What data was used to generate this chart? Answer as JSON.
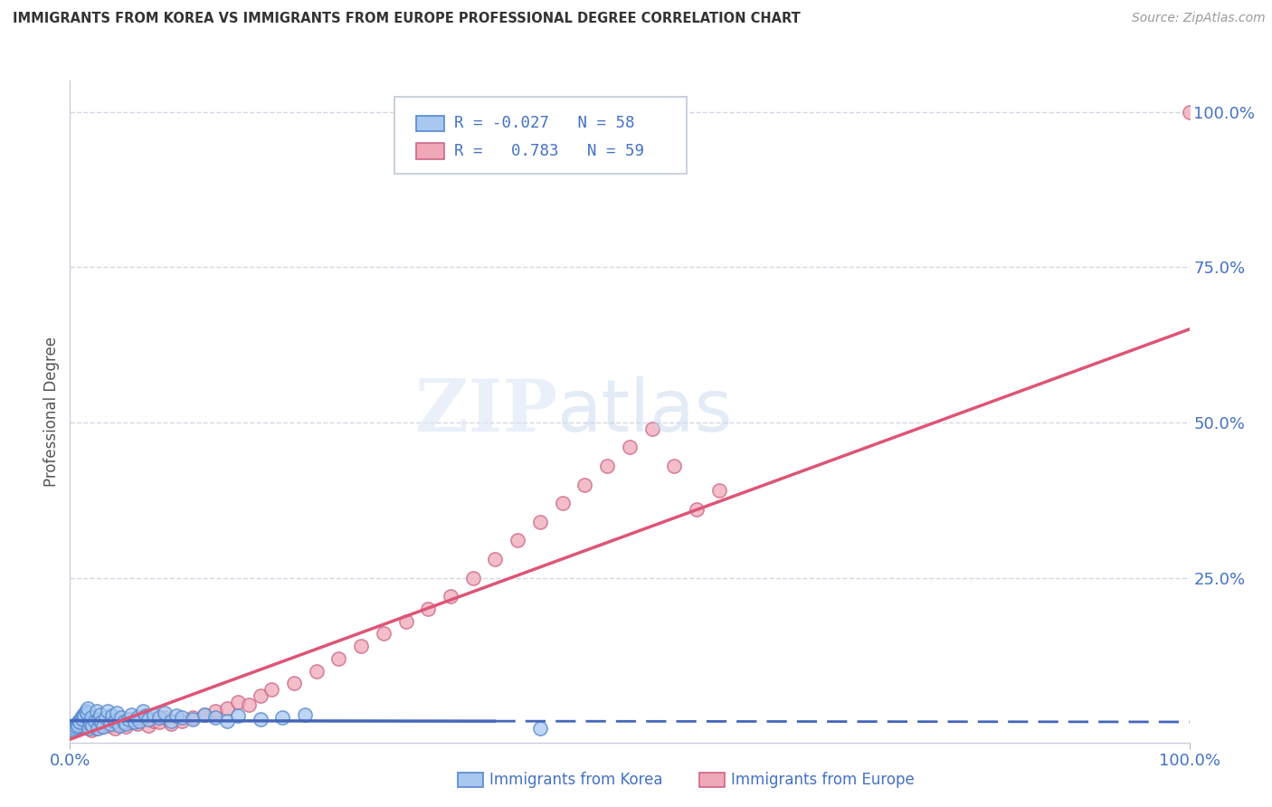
{
  "title": "IMMIGRANTS FROM KOREA VS IMMIGRANTS FROM EUROPE PROFESSIONAL DEGREE CORRELATION CHART",
  "source": "Source: ZipAtlas.com",
  "ylabel": "Professional Degree",
  "color_korea": "#a8c8f0",
  "color_korea_edge": "#5588cc",
  "color_europe": "#f0a8b8",
  "color_europe_edge": "#cc6688",
  "color_korea_line": "#4466bb",
  "color_europe_line": "#dd5577",
  "color_text_blue": "#4472c4",
  "background_color": "#ffffff",
  "grid_color": "#ccccdd",
  "xlim": [
    0.0,
    1.0
  ],
  "ylim": [
    -0.015,
    1.05
  ],
  "korea_scatter_x": [
    0.003,
    0.004,
    0.005,
    0.006,
    0.007,
    0.008,
    0.009,
    0.01,
    0.011,
    0.012,
    0.013,
    0.014,
    0.015,
    0.016,
    0.017,
    0.018,
    0.019,
    0.02,
    0.022,
    0.024,
    0.025,
    0.026,
    0.027,
    0.028,
    0.03,
    0.032,
    0.034,
    0.036,
    0.038,
    0.04,
    0.042,
    0.044,
    0.046,
    0.048,
    0.05,
    0.052,
    0.055,
    0.058,
    0.06,
    0.062,
    0.065,
    0.068,
    0.07,
    0.075,
    0.08,
    0.085,
    0.09,
    0.095,
    0.1,
    0.11,
    0.12,
    0.13,
    0.14,
    0.15,
    0.17,
    0.19,
    0.21,
    0.42
  ],
  "korea_scatter_y": [
    0.005,
    0.008,
    0.01,
    0.015,
    0.012,
    0.02,
    0.018,
    0.025,
    0.022,
    0.03,
    0.028,
    0.035,
    0.032,
    0.04,
    0.008,
    0.015,
    0.025,
    0.012,
    0.02,
    0.035,
    0.008,
    0.022,
    0.03,
    0.018,
    0.01,
    0.025,
    0.035,
    0.015,
    0.028,
    0.02,
    0.032,
    0.012,
    0.025,
    0.018,
    0.015,
    0.022,
    0.03,
    0.018,
    0.025,
    0.02,
    0.035,
    0.028,
    0.022,
    0.03,
    0.025,
    0.032,
    0.02,
    0.028,
    0.025,
    0.022,
    0.03,
    0.025,
    0.02,
    0.028,
    0.022,
    0.025,
    0.03,
    0.008
  ],
  "europe_scatter_x": [
    0.003,
    0.005,
    0.007,
    0.009,
    0.011,
    0.013,
    0.015,
    0.017,
    0.019,
    0.021,
    0.023,
    0.025,
    0.027,
    0.03,
    0.032,
    0.035,
    0.038,
    0.04,
    0.043,
    0.046,
    0.05,
    0.055,
    0.06,
    0.065,
    0.07,
    0.075,
    0.08,
    0.085,
    0.09,
    0.1,
    0.11,
    0.12,
    0.13,
    0.14,
    0.15,
    0.16,
    0.17,
    0.18,
    0.2,
    0.22,
    0.24,
    0.26,
    0.28,
    0.3,
    0.32,
    0.34,
    0.36,
    0.38,
    0.4,
    0.42,
    0.44,
    0.46,
    0.48,
    0.5,
    0.52,
    0.54,
    0.56,
    0.58,
    1.0
  ],
  "europe_scatter_y": [
    0.005,
    0.008,
    0.01,
    0.012,
    0.015,
    0.018,
    0.02,
    0.025,
    0.005,
    0.012,
    0.008,
    0.015,
    0.02,
    0.01,
    0.018,
    0.012,
    0.025,
    0.008,
    0.015,
    0.02,
    0.01,
    0.018,
    0.015,
    0.025,
    0.012,
    0.02,
    0.018,
    0.025,
    0.015,
    0.02,
    0.025,
    0.03,
    0.035,
    0.04,
    0.05,
    0.045,
    0.06,
    0.07,
    0.08,
    0.1,
    0.12,
    0.14,
    0.16,
    0.18,
    0.2,
    0.22,
    0.25,
    0.28,
    0.31,
    0.34,
    0.37,
    0.4,
    0.43,
    0.46,
    0.49,
    0.43,
    0.36,
    0.39,
    1.0
  ],
  "korea_line_x": [
    0.0,
    1.0
  ],
  "korea_line_y": [
    0.02,
    0.018
  ],
  "korea_line_solid_end": 0.38,
  "europe_line_x0": 0.0,
  "europe_line_x1": 1.0,
  "europe_line_y0": -0.01,
  "europe_line_y1": 0.65,
  "legend_r1_text": "R = -0.027   N = 58",
  "legend_r2_text": "R =   0.783   N = 59"
}
